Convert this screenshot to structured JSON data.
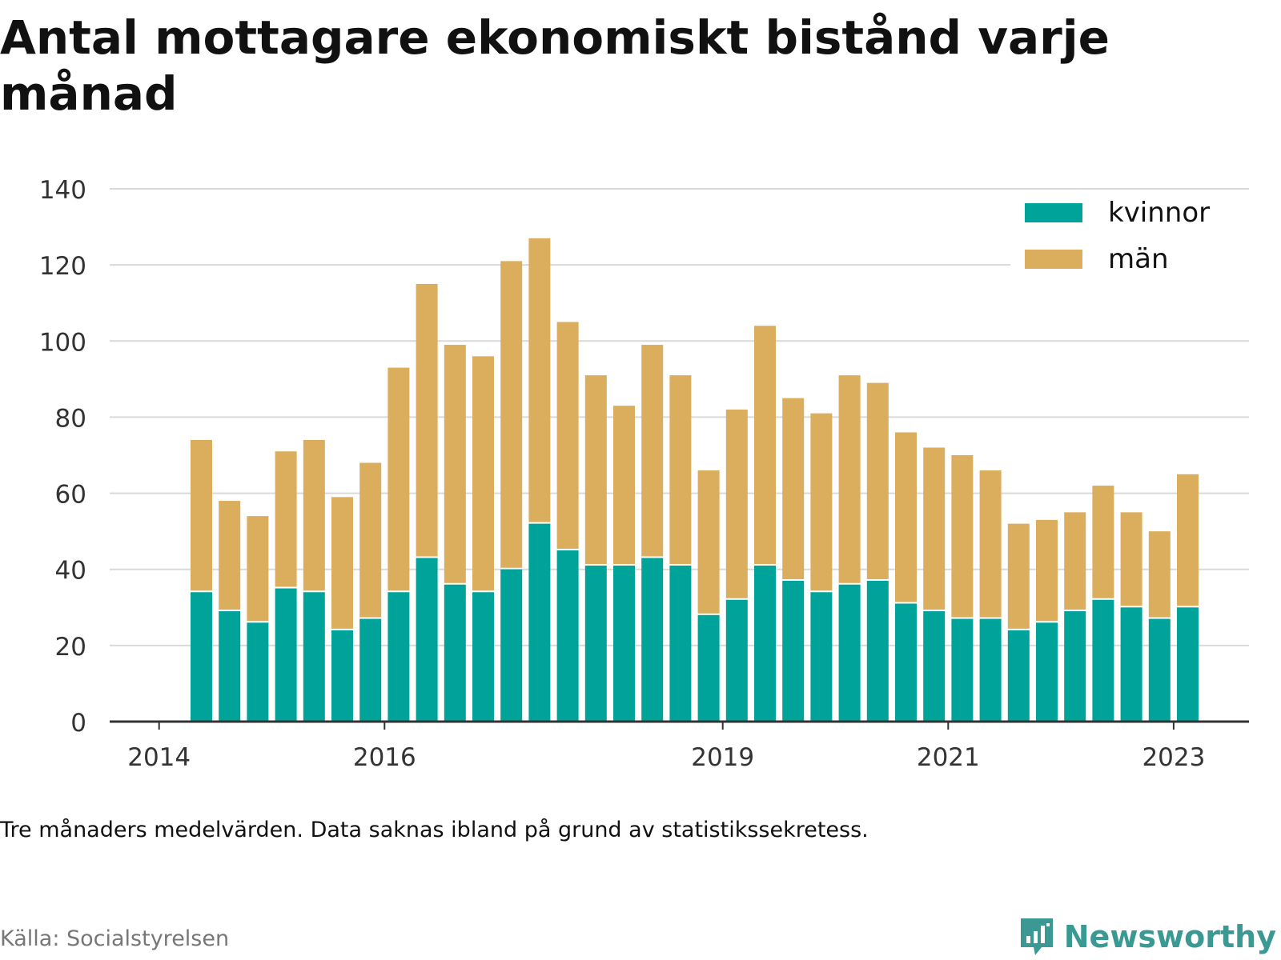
{
  "title": "Antal mottagare ekonomiskt bistånd varje månad",
  "note": "Tre månaders medelvärden. Data saknas ibland på grund av statistikssekretess.",
  "source": "Källa: Socialstyrelsen",
  "brand": {
    "name": "Newsworthy",
    "icon": "newsworthy-logo-icon"
  },
  "colors": {
    "kvinnor": "#00a39a",
    "man": "#daae5d",
    "grid": "#d9d9d9",
    "axis": "#333333"
  },
  "chart_data": {
    "type": "bar",
    "stacked": true,
    "title": "Antal mottagare ekonomiskt bistånd varje månad",
    "xlabel": "",
    "ylabel": "",
    "ylim": [
      0,
      140
    ],
    "yticks": [
      0,
      20,
      40,
      60,
      80,
      100,
      120,
      140
    ],
    "xticks": [
      "2014",
      "2016",
      "2019",
      "2021",
      "2023"
    ],
    "grid": true,
    "legend_position": "top-right",
    "categories": [
      "2014-Q2",
      "2014-Q3",
      "2014-Q4",
      "2015-Q1",
      "2015-Q2",
      "2015-Q3",
      "2015-Q4",
      "2016-Q1",
      "2016-Q2",
      "2016-Q3",
      "2016-Q4",
      "2017-Q1",
      "2017-Q2",
      "2017-Q3",
      "2017-Q4",
      "2018-Q1",
      "2018-Q2",
      "2018-Q3",
      "2018-Q4",
      "2019-Q1",
      "2019-Q2",
      "2019-Q3",
      "2019-Q4",
      "2020-Q1",
      "2020-Q2",
      "2020-Q3",
      "2020-Q4",
      "2021-Q1",
      "2021-Q2",
      "2021-Q3",
      "2021-Q4",
      "2022-Q1",
      "2022-Q2",
      "2022-Q3",
      "2022-Q4",
      "2023-Q1"
    ],
    "series": [
      {
        "name": "kvinnor",
        "values": [
          34,
          29,
          26,
          35,
          34,
          24,
          27,
          34,
          43,
          36,
          34,
          40,
          52,
          45,
          41,
          41,
          43,
          41,
          28,
          32,
          41,
          37,
          34,
          36,
          37,
          31,
          29,
          27,
          27,
          24,
          26,
          29,
          32,
          30,
          27,
          30
        ]
      },
      {
        "name": "män",
        "values": [
          40,
          29,
          28,
          36,
          40,
          35,
          41,
          59,
          72,
          63,
          62,
          81,
          75,
          60,
          50,
          42,
          56,
          50,
          38,
          50,
          63,
          48,
          47,
          55,
          52,
          45,
          43,
          43,
          39,
          28,
          27,
          26,
          30,
          25,
          23,
          35
        ]
      }
    ]
  }
}
